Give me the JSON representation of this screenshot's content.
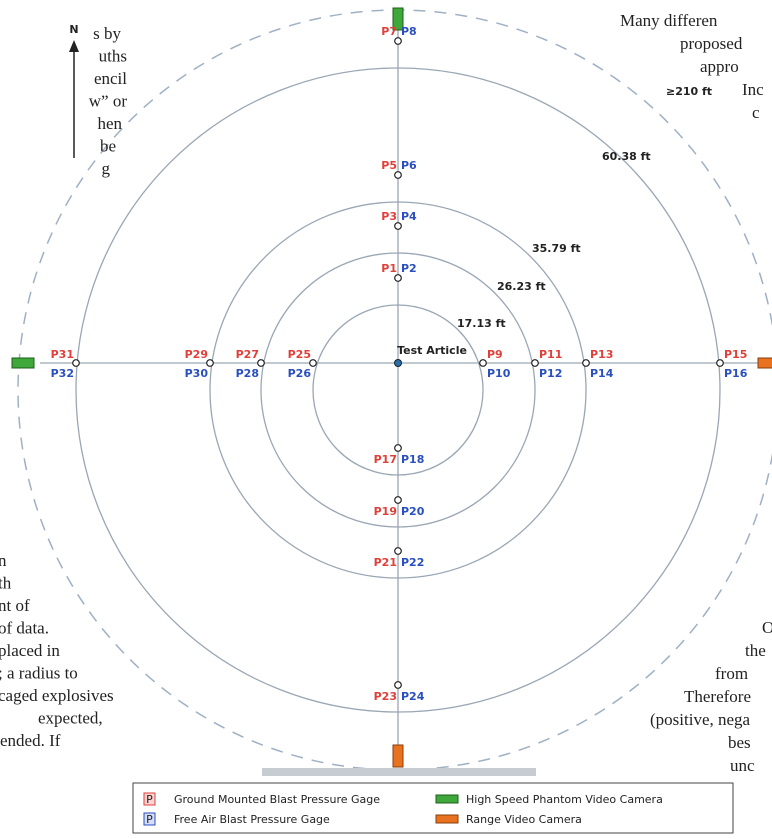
{
  "left_text_top": [
    "s by",
    "uths",
    "encil",
    "w” or",
    "hen",
    "be",
    "g"
  ],
  "left_text_bottom": [
    "n",
    "th",
    "nt of",
    "of data.",
    "placed in",
    "; a radius to",
    "caged explosives",
    "expected,",
    "ended.  If"
  ],
  "right_text_top": [
    "Many differen",
    "proposed",
    "appro",
    "Inc",
    "c"
  ],
  "right_text_bottom": [
    "O",
    "the",
    "from",
    "Therefore",
    "(positive, nega",
    "bes",
    "unc"
  ],
  "diagram": {
    "north": "N",
    "center_label": "Test Article",
    "radius_labels": [
      "17.13 ft",
      "26.23 ft",
      "35.79 ft",
      "60.38 ft",
      "≥210 ft"
    ],
    "gages": {
      "north": [
        [
          "P1",
          "P2"
        ],
        [
          "P3",
          "P4"
        ],
        [
          "P5",
          "P6"
        ],
        [
          "P7",
          "P8"
        ]
      ],
      "east": [
        [
          "P9",
          "P10"
        ],
        [
          "P11",
          "P12"
        ],
        [
          "P13",
          "P14"
        ],
        [
          "P15",
          "P16"
        ]
      ],
      "south": [
        [
          "P17",
          "P18"
        ],
        [
          "P19",
          "P20"
        ],
        [
          "P21",
          "P22"
        ],
        [
          "P23",
          "P24"
        ]
      ],
      "west": [
        [
          "P25",
          "P26"
        ],
        [
          "P27",
          "P28"
        ],
        [
          "P29",
          "P30"
        ],
        [
          "P31",
          "P32"
        ]
      ]
    }
  },
  "legend": {
    "ground": {
      "icon": "P",
      "label": "Ground Mounted Blast Pressure Gage"
    },
    "free_air": {
      "icon": "P",
      "label": "Free Air Blast Pressure Gage"
    },
    "high_speed": {
      "label": "High Speed Phantom Video Camera"
    },
    "range": {
      "label": "Range Video Camera"
    }
  }
}
